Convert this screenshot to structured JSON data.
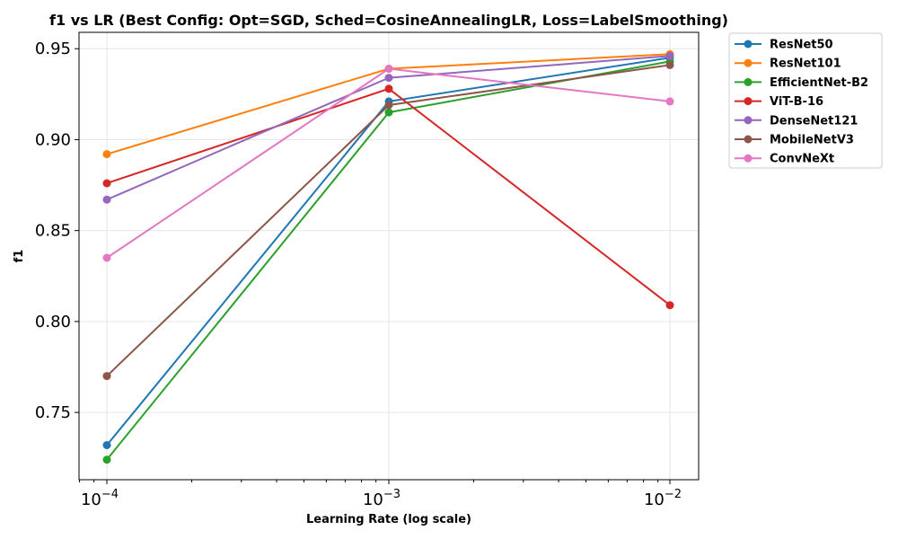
{
  "chart_data": {
    "type": "line",
    "title": "f1 vs LR (Best Config: Opt=SGD, Sched=CosineAnnealingLR, Loss=LabelSmoothing)",
    "xlabel": "Learning Rate (log scale)",
    "ylabel": "f1",
    "xscale": "log",
    "x": [
      0.0001,
      0.001,
      0.01
    ],
    "x_tick_labels": [
      "10^-4",
      "10^-3",
      "10^-2"
    ],
    "ylim": [
      0.713,
      0.959
    ],
    "y_ticks": [
      0.75,
      0.8,
      0.85,
      0.9,
      0.95
    ],
    "y_tick_labels": [
      "0.75",
      "0.80",
      "0.85",
      "0.90",
      "0.95"
    ],
    "grid": true,
    "legend_position": "outside-top-right",
    "series": [
      {
        "name": "ResNet50",
        "color": "#1f77b4",
        "values": [
          0.732,
          0.921,
          0.945
        ]
      },
      {
        "name": "ResNet101",
        "color": "#ff7f0e",
        "values": [
          0.892,
          0.939,
          0.947
        ]
      },
      {
        "name": "EfficientNet-B2",
        "color": "#2ca02c",
        "values": [
          0.724,
          0.915,
          0.943
        ]
      },
      {
        "name": "ViT-B-16",
        "color": "#d62728",
        "values": [
          0.876,
          0.928,
          0.809
        ]
      },
      {
        "name": "DenseNet121",
        "color": "#9467bd",
        "values": [
          0.867,
          0.934,
          0.946
        ]
      },
      {
        "name": "MobileNetV3",
        "color": "#8c564b",
        "values": [
          0.77,
          0.919,
          0.941
        ]
      },
      {
        "name": "ConvNeXt",
        "color": "#e377c2",
        "values": [
          0.835,
          0.939,
          0.921
        ]
      }
    ]
  }
}
